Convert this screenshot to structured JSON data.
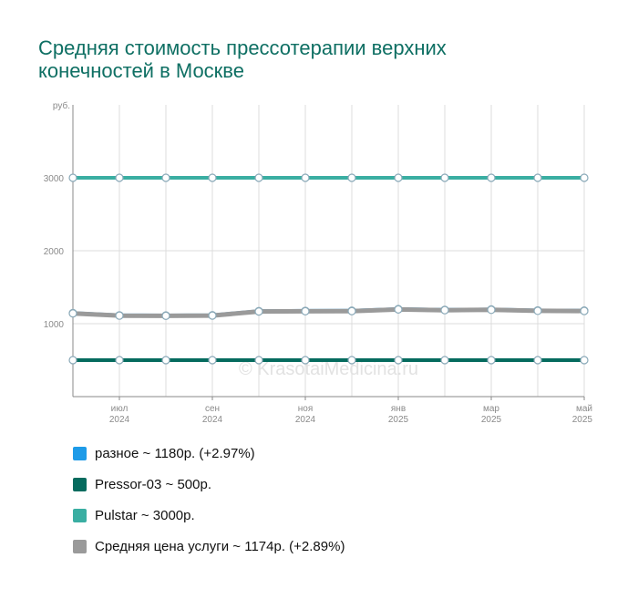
{
  "chart_data": {
    "type": "line",
    "title": "Средняя стоимость прессотерапии верхних конечностей в Москве",
    "y_unit": "руб.",
    "watermark": "© KrasotaiMedicina.ru",
    "ylim": [
      0,
      4000
    ],
    "y_ticks": [
      1000,
      2000,
      3000
    ],
    "grid": true,
    "legend_position": "bottom",
    "x": [
      "2024-06",
      "2024-07",
      "2024-08",
      "2024-09",
      "2024-10",
      "2024-11",
      "2024-12",
      "2025-01",
      "2025-02",
      "2025-03",
      "2025-04",
      "2025-05"
    ],
    "x_tick_labels": [
      {
        "month": "июл",
        "year": "2024"
      },
      {
        "month": "сен",
        "year": "2024"
      },
      {
        "month": "ноя",
        "year": "2024"
      },
      {
        "month": "янв",
        "year": "2025"
      },
      {
        "month": "мар",
        "year": "2025"
      },
      {
        "month": "май",
        "year": "2025"
      }
    ],
    "series": [
      {
        "name": "разное",
        "color": "#1e9be8",
        "values": [
          1146,
          1115,
          1113,
          1116,
          1172,
          1176,
          1178,
          1200,
          1190,
          1195,
          1182,
          1180
        ]
      },
      {
        "name": "Pressor-03",
        "color": "#056b5e",
        "values": [
          500,
          500,
          500,
          500,
          500,
          500,
          500,
          500,
          500,
          500,
          500,
          500
        ]
      },
      {
        "name": "Pulstar",
        "color": "#3aaea2",
        "values": [
          3000,
          3000,
          3000,
          3000,
          3000,
          3000,
          3000,
          3000,
          3000,
          3000,
          3000,
          3000
        ]
      },
      {
        "name": "Средняя цена услуги",
        "color": "#9a9a9a",
        "values": [
          1141,
          1110,
          1108,
          1111,
          1167,
          1170,
          1172,
          1195,
          1185,
          1190,
          1176,
          1174
        ]
      }
    ],
    "legend": [
      {
        "label": "разное ~ 1180р. (+2.97%)",
        "color": "#1e9be8"
      },
      {
        "label": "Pressor-03 ~ 500р.",
        "color": "#056b5e"
      },
      {
        "label": "Pulstar ~ 3000р.",
        "color": "#3aaea2"
      },
      {
        "label": "Средняя цена услуги ~ 1174р. (+2.89%)",
        "color": "#9a9a9a"
      }
    ]
  }
}
